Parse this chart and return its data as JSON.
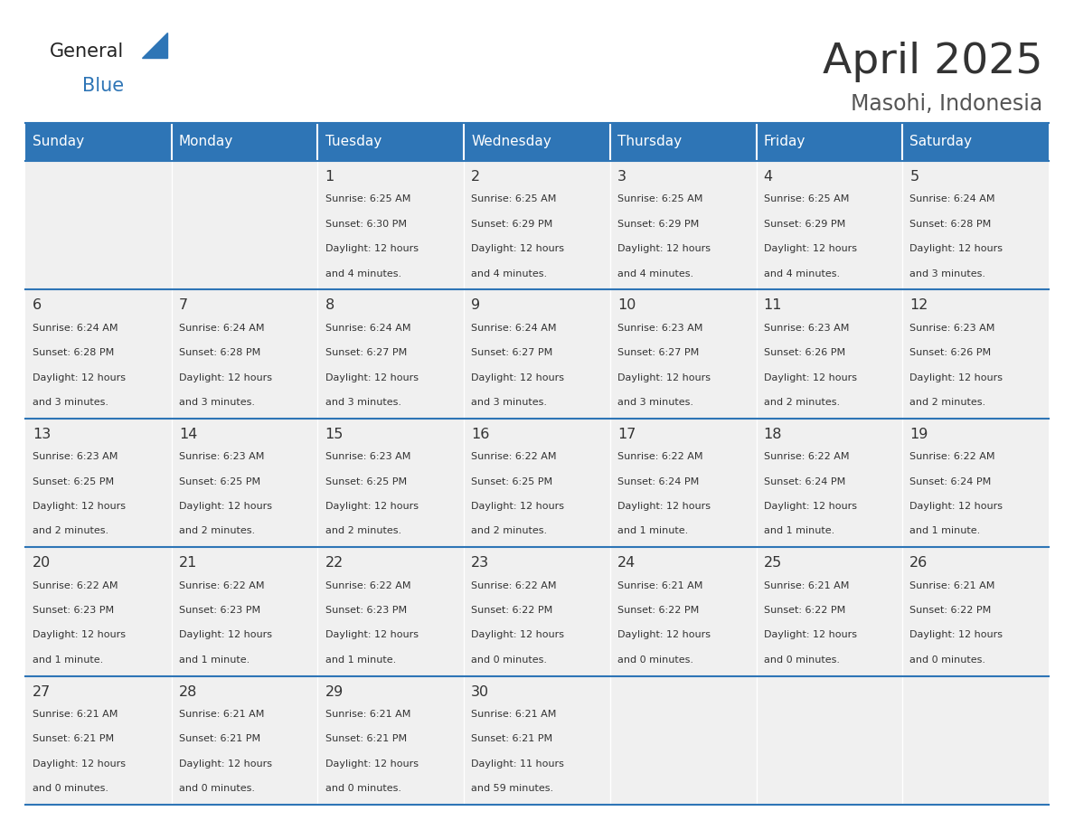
{
  "title": "April 2025",
  "subtitle": "Masohi, Indonesia",
  "header_color": "#2e75b6",
  "header_text_color": "#ffffff",
  "cell_bg_color": "#f0f0f0",
  "text_color": "#333333",
  "border_color": "#2e75b6",
  "logo_general_color": "#222222",
  "logo_blue_color": "#2e75b6",
  "logo_triangle_color": "#2e75b6",
  "title_color": "#333333",
  "subtitle_color": "#555555",
  "days_of_week": [
    "Sunday",
    "Monday",
    "Tuesday",
    "Wednesday",
    "Thursday",
    "Friday",
    "Saturday"
  ],
  "weeks": [
    [
      {
        "day": "",
        "sunrise": "",
        "sunset": "",
        "daylight": ""
      },
      {
        "day": "",
        "sunrise": "",
        "sunset": "",
        "daylight": ""
      },
      {
        "day": "1",
        "sunrise": "6:25 AM",
        "sunset": "6:30 PM",
        "daylight": "12 hours\nand 4 minutes."
      },
      {
        "day": "2",
        "sunrise": "6:25 AM",
        "sunset": "6:29 PM",
        "daylight": "12 hours\nand 4 minutes."
      },
      {
        "day": "3",
        "sunrise": "6:25 AM",
        "sunset": "6:29 PM",
        "daylight": "12 hours\nand 4 minutes."
      },
      {
        "day": "4",
        "sunrise": "6:25 AM",
        "sunset": "6:29 PM",
        "daylight": "12 hours\nand 4 minutes."
      },
      {
        "day": "5",
        "sunrise": "6:24 AM",
        "sunset": "6:28 PM",
        "daylight": "12 hours\nand 3 minutes."
      }
    ],
    [
      {
        "day": "6",
        "sunrise": "6:24 AM",
        "sunset": "6:28 PM",
        "daylight": "12 hours\nand 3 minutes."
      },
      {
        "day": "7",
        "sunrise": "6:24 AM",
        "sunset": "6:28 PM",
        "daylight": "12 hours\nand 3 minutes."
      },
      {
        "day": "8",
        "sunrise": "6:24 AM",
        "sunset": "6:27 PM",
        "daylight": "12 hours\nand 3 minutes."
      },
      {
        "day": "9",
        "sunrise": "6:24 AM",
        "sunset": "6:27 PM",
        "daylight": "12 hours\nand 3 minutes."
      },
      {
        "day": "10",
        "sunrise": "6:23 AM",
        "sunset": "6:27 PM",
        "daylight": "12 hours\nand 3 minutes."
      },
      {
        "day": "11",
        "sunrise": "6:23 AM",
        "sunset": "6:26 PM",
        "daylight": "12 hours\nand 2 minutes."
      },
      {
        "day": "12",
        "sunrise": "6:23 AM",
        "sunset": "6:26 PM",
        "daylight": "12 hours\nand 2 minutes."
      }
    ],
    [
      {
        "day": "13",
        "sunrise": "6:23 AM",
        "sunset": "6:25 PM",
        "daylight": "12 hours\nand 2 minutes."
      },
      {
        "day": "14",
        "sunrise": "6:23 AM",
        "sunset": "6:25 PM",
        "daylight": "12 hours\nand 2 minutes."
      },
      {
        "day": "15",
        "sunrise": "6:23 AM",
        "sunset": "6:25 PM",
        "daylight": "12 hours\nand 2 minutes."
      },
      {
        "day": "16",
        "sunrise": "6:22 AM",
        "sunset": "6:25 PM",
        "daylight": "12 hours\nand 2 minutes."
      },
      {
        "day": "17",
        "sunrise": "6:22 AM",
        "sunset": "6:24 PM",
        "daylight": "12 hours\nand 1 minute."
      },
      {
        "day": "18",
        "sunrise": "6:22 AM",
        "sunset": "6:24 PM",
        "daylight": "12 hours\nand 1 minute."
      },
      {
        "day": "19",
        "sunrise": "6:22 AM",
        "sunset": "6:24 PM",
        "daylight": "12 hours\nand 1 minute."
      }
    ],
    [
      {
        "day": "20",
        "sunrise": "6:22 AM",
        "sunset": "6:23 PM",
        "daylight": "12 hours\nand 1 minute."
      },
      {
        "day": "21",
        "sunrise": "6:22 AM",
        "sunset": "6:23 PM",
        "daylight": "12 hours\nand 1 minute."
      },
      {
        "day": "22",
        "sunrise": "6:22 AM",
        "sunset": "6:23 PM",
        "daylight": "12 hours\nand 1 minute."
      },
      {
        "day": "23",
        "sunrise": "6:22 AM",
        "sunset": "6:22 PM",
        "daylight": "12 hours\nand 0 minutes."
      },
      {
        "day": "24",
        "sunrise": "6:21 AM",
        "sunset": "6:22 PM",
        "daylight": "12 hours\nand 0 minutes."
      },
      {
        "day": "25",
        "sunrise": "6:21 AM",
        "sunset": "6:22 PM",
        "daylight": "12 hours\nand 0 minutes."
      },
      {
        "day": "26",
        "sunrise": "6:21 AM",
        "sunset": "6:22 PM",
        "daylight": "12 hours\nand 0 minutes."
      }
    ],
    [
      {
        "day": "27",
        "sunrise": "6:21 AM",
        "sunset": "6:21 PM",
        "daylight": "12 hours\nand 0 minutes."
      },
      {
        "day": "28",
        "sunrise": "6:21 AM",
        "sunset": "6:21 PM",
        "daylight": "12 hours\nand 0 minutes."
      },
      {
        "day": "29",
        "sunrise": "6:21 AM",
        "sunset": "6:21 PM",
        "daylight": "12 hours\nand 0 minutes."
      },
      {
        "day": "30",
        "sunrise": "6:21 AM",
        "sunset": "6:21 PM",
        "daylight": "11 hours\nand 59 minutes."
      },
      {
        "day": "",
        "sunrise": "",
        "sunset": "",
        "daylight": ""
      },
      {
        "day": "",
        "sunrise": "",
        "sunset": "",
        "daylight": ""
      },
      {
        "day": "",
        "sunrise": "",
        "sunset": "",
        "daylight": ""
      }
    ]
  ]
}
